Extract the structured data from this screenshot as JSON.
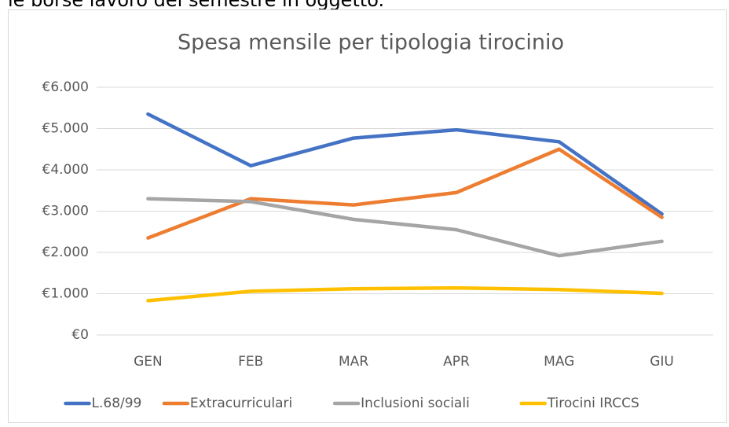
{
  "document_text": "le borse lavoro del semestre in oggetto.",
  "chart_data": {
    "type": "line",
    "title": "Spesa mensile per tipologia tirocinio",
    "categories": [
      "GEN",
      "FEB",
      "MAR",
      "APR",
      "MAG",
      "GIU"
    ],
    "series": [
      {
        "name": "L.68/99",
        "color": "#4472c4",
        "values": [
          5350,
          4100,
          4770,
          4970,
          4680,
          2930
        ]
      },
      {
        "name": "Extracurriculari",
        "color": "#ed7d31",
        "values": [
          2350,
          3300,
          3150,
          3450,
          4500,
          2850
        ]
      },
      {
        "name": "Inclusioni sociali",
        "color": "#a5a5a5",
        "values": [
          3300,
          3230,
          2800,
          2550,
          1920,
          2270
        ]
      },
      {
        "name": "Tirocini IRCCS",
        "color": "#ffc000",
        "values": [
          830,
          1060,
          1120,
          1140,
          1100,
          1010
        ]
      }
    ],
    "ylim": [
      0,
      6000
    ],
    "yticks": [
      {
        "value": 0,
        "label": "€0"
      },
      {
        "value": 1000,
        "label": "€1.000"
      },
      {
        "value": 2000,
        "label": "€2.000"
      },
      {
        "value": 3000,
        "label": "€3.000"
      },
      {
        "value": 4000,
        "label": "€4.000"
      },
      {
        "value": 5000,
        "label": "€5.000"
      },
      {
        "value": 6000,
        "label": "€6.000"
      }
    ],
    "grid": true,
    "legend": "bottom"
  }
}
